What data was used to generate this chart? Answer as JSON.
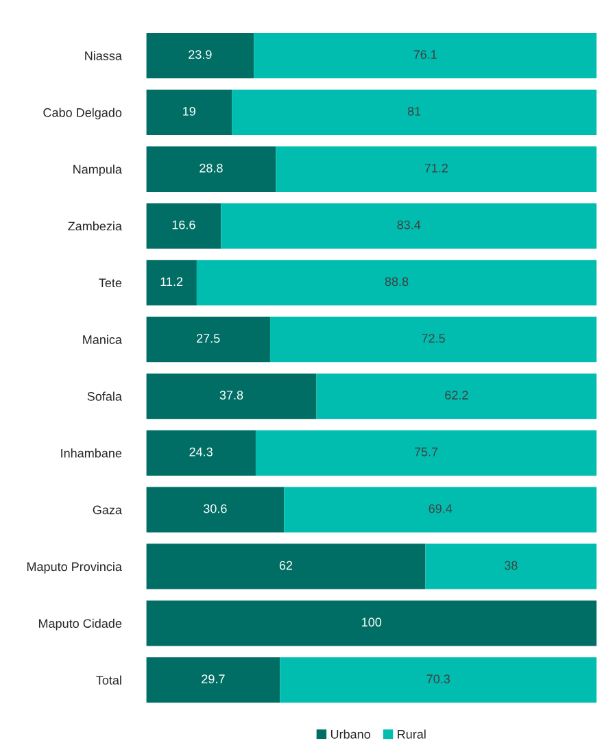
{
  "chart_data": {
    "type": "bar",
    "orientation": "horizontal",
    "stacked": true,
    "categories": [
      "Niassa",
      "Cabo Delgado",
      "Nampula",
      "Zambezia",
      "Tete",
      "Manica",
      "Sofala",
      "Inhambane",
      "Gaza",
      "Maputo Provincia",
      "Maputo Cidade",
      "Total"
    ],
    "series": [
      {
        "name": "Urbano",
        "color": "#006e64",
        "values": [
          23.9,
          19,
          28.8,
          16.6,
          11.2,
          27.5,
          37.8,
          24.3,
          30.6,
          62,
          100,
          29.7
        ],
        "value_labels": [
          "23.9",
          "19",
          "28.8",
          "16.6",
          "11.2",
          "27.5",
          "37.8",
          "24.3",
          "30.6",
          "62",
          "100",
          "29.7"
        ]
      },
      {
        "name": "Rural",
        "color": "#00bdb0",
        "values": [
          76.1,
          81,
          71.2,
          83.4,
          88.8,
          72.5,
          62.2,
          75.7,
          69.4,
          38,
          0,
          70.3
        ],
        "value_labels": [
          "76.1",
          "81",
          "71.2",
          "83.4",
          "88.8",
          "72.5",
          "62.2",
          "75.7",
          "69.4",
          "38",
          null,
          "70.3"
        ]
      }
    ],
    "xlim": [
      0,
      100
    ],
    "tick_labels": "y",
    "legend": "bottom",
    "grid": false
  }
}
